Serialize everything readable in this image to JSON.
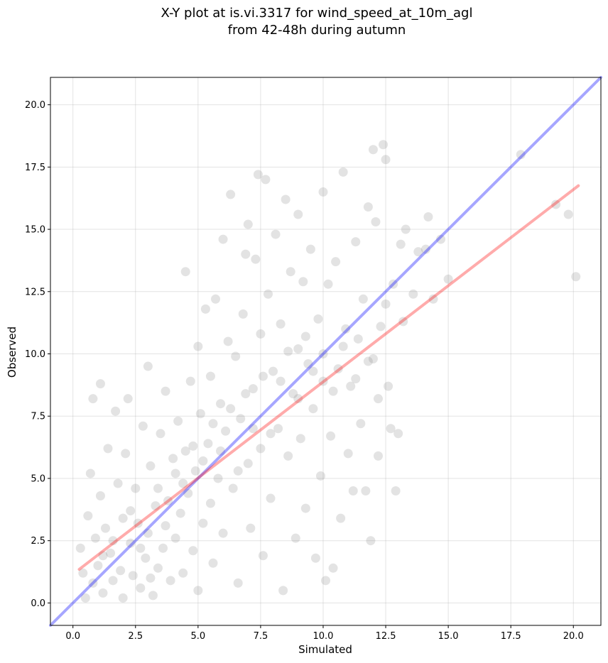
{
  "chart_data": {
    "type": "scatter",
    "title_line1": "X-Y plot at is.vi.3317 for wind_speed_at_10m_agl",
    "title_line2": "from 42-48h during autumn",
    "xlabel": "Simulated",
    "ylabel": "Observed",
    "xlim": [
      -0.9,
      21.1
    ],
    "ylim": [
      -0.9,
      21.1
    ],
    "xticks": [
      0.0,
      2.5,
      5.0,
      7.5,
      10.0,
      12.5,
      15.0,
      17.5,
      20.0
    ],
    "yticks": [
      0.0,
      2.5,
      5.0,
      7.5,
      10.0,
      12.5,
      15.0,
      17.5,
      20.0
    ],
    "xtick_labels": [
      "0.0",
      "2.5",
      "5.0",
      "7.5",
      "10.0",
      "12.5",
      "15.0",
      "17.5",
      "20.0"
    ],
    "ytick_labels": [
      "0.0",
      "2.5",
      "5.0",
      "7.5",
      "10.0",
      "12.5",
      "15.0",
      "17.5",
      "20.0"
    ],
    "grid": true,
    "point_color": "#808080",
    "points": [
      [
        0.3,
        2.2
      ],
      [
        0.4,
        1.2
      ],
      [
        0.5,
        0.2
      ],
      [
        0.6,
        3.5
      ],
      [
        0.7,
        5.2
      ],
      [
        0.8,
        0.8
      ],
      [
        0.8,
        8.2
      ],
      [
        0.9,
        2.6
      ],
      [
        1.0,
        1.5
      ],
      [
        1.1,
        4.3
      ],
      [
        1.1,
        8.8
      ],
      [
        1.2,
        0.4
      ],
      [
        1.3,
        3.0
      ],
      [
        1.4,
        6.2
      ],
      [
        1.5,
        2.0
      ],
      [
        1.6,
        0.9
      ],
      [
        1.7,
        7.7
      ],
      [
        1.8,
        4.8
      ],
      [
        1.9,
        1.3
      ],
      [
        2.0,
        3.4
      ],
      [
        2.0,
        0.2
      ],
      [
        2.1,
        6.0
      ],
      [
        2.2,
        8.2
      ],
      [
        2.3,
        2.4
      ],
      [
        2.4,
        1.1
      ],
      [
        2.5,
        4.6
      ],
      [
        2.6,
        3.2
      ],
      [
        2.7,
        0.6
      ],
      [
        2.8,
        7.1
      ],
      [
        2.9,
        1.8
      ],
      [
        3.0,
        9.5
      ],
      [
        3.0,
        2.8
      ],
      [
        3.1,
        5.5
      ],
      [
        3.2,
        0.3
      ],
      [
        3.3,
        3.9
      ],
      [
        3.4,
        1.4
      ],
      [
        3.5,
        6.8
      ],
      [
        3.6,
        2.2
      ],
      [
        3.7,
        8.5
      ],
      [
        3.8,
        4.1
      ],
      [
        3.9,
        0.9
      ],
      [
        4.0,
        5.8
      ],
      [
        4.1,
        2.6
      ],
      [
        4.2,
        7.3
      ],
      [
        4.3,
        3.6
      ],
      [
        4.4,
        1.2
      ],
      [
        4.5,
        13.3
      ],
      [
        4.5,
        6.1
      ],
      [
        4.6,
        4.4
      ],
      [
        4.7,
        8.9
      ],
      [
        4.8,
        2.1
      ],
      [
        4.9,
        5.3
      ],
      [
        5.0,
        10.3
      ],
      [
        5.0,
        0.5
      ],
      [
        5.1,
        7.6
      ],
      [
        5.2,
        3.2
      ],
      [
        5.3,
        11.8
      ],
      [
        5.4,
        6.4
      ],
      [
        5.5,
        4.0
      ],
      [
        5.5,
        9.1
      ],
      [
        5.6,
        1.6
      ],
      [
        5.7,
        12.2
      ],
      [
        5.8,
        5.0
      ],
      [
        5.9,
        8.0
      ],
      [
        6.0,
        14.6
      ],
      [
        6.0,
        2.8
      ],
      [
        6.1,
        6.9
      ],
      [
        6.2,
        10.5
      ],
      [
        6.3,
        16.4
      ],
      [
        6.4,
        4.6
      ],
      [
        6.5,
        9.9
      ],
      [
        6.6,
        0.8
      ],
      [
        6.7,
        7.4
      ],
      [
        6.8,
        11.6
      ],
      [
        6.9,
        14.0
      ],
      [
        7.0,
        5.6
      ],
      [
        7.0,
        15.2
      ],
      [
        7.1,
        3.0
      ],
      [
        7.2,
        8.6
      ],
      [
        7.3,
        13.8
      ],
      [
        7.4,
        17.2
      ],
      [
        7.5,
        6.2
      ],
      [
        7.5,
        10.8
      ],
      [
        7.6,
        1.9
      ],
      [
        7.7,
        17.0
      ],
      [
        7.8,
        12.4
      ],
      [
        7.9,
        4.2
      ],
      [
        8.0,
        9.3
      ],
      [
        8.1,
        14.8
      ],
      [
        8.2,
        7.0
      ],
      [
        8.3,
        11.2
      ],
      [
        8.4,
        0.5
      ],
      [
        8.5,
        16.2
      ],
      [
        8.6,
        5.9
      ],
      [
        8.7,
        13.3
      ],
      [
        8.8,
        8.4
      ],
      [
        8.9,
        2.6
      ],
      [
        9.0,
        15.6
      ],
      [
        9.0,
        10.2
      ],
      [
        9.1,
        6.6
      ],
      [
        9.2,
        12.9
      ],
      [
        9.3,
        3.8
      ],
      [
        9.4,
        9.6
      ],
      [
        9.5,
        14.2
      ],
      [
        9.6,
        7.8
      ],
      [
        9.7,
        1.8
      ],
      [
        9.8,
        11.4
      ],
      [
        9.9,
        5.1
      ],
      [
        10.0,
        16.5
      ],
      [
        10.0,
        8.9
      ],
      [
        10.1,
        0.9
      ],
      [
        10.2,
        12.8
      ],
      [
        10.3,
        6.7
      ],
      [
        10.4,
        1.4
      ],
      [
        10.5,
        13.7
      ],
      [
        10.6,
        9.4
      ],
      [
        10.7,
        3.4
      ],
      [
        10.8,
        17.3
      ],
      [
        10.9,
        11.0
      ],
      [
        11.0,
        6.0
      ],
      [
        11.1,
        8.7
      ],
      [
        11.2,
        4.5
      ],
      [
        11.3,
        14.5
      ],
      [
        11.4,
        10.6
      ],
      [
        11.5,
        7.2
      ],
      [
        11.6,
        12.2
      ],
      [
        11.7,
        4.5
      ],
      [
        11.8,
        15.9
      ],
      [
        11.9,
        2.5
      ],
      [
        12.0,
        18.2
      ],
      [
        12.0,
        9.8
      ],
      [
        12.1,
        15.3
      ],
      [
        12.2,
        5.9
      ],
      [
        12.3,
        11.1
      ],
      [
        12.4,
        18.4
      ],
      [
        12.5,
        17.8
      ],
      [
        12.5,
        12.0
      ],
      [
        12.6,
        8.7
      ],
      [
        12.7,
        7.0
      ],
      [
        12.8,
        12.8
      ],
      [
        12.9,
        4.5
      ],
      [
        13.0,
        6.8
      ],
      [
        13.1,
        14.4
      ],
      [
        13.2,
        11.3
      ],
      [
        13.3,
        15.0
      ],
      [
        13.6,
        12.4
      ],
      [
        13.8,
        14.1
      ],
      [
        14.1,
        14.2
      ],
      [
        14.2,
        15.5
      ],
      [
        14.4,
        12.2
      ],
      [
        14.7,
        14.6
      ],
      [
        15.0,
        13.0
      ],
      [
        17.9,
        18.0
      ],
      [
        19.3,
        16.0
      ],
      [
        19.8,
        15.6
      ],
      [
        20.1,
        13.1
      ],
      [
        1.2,
        1.9
      ],
      [
        1.6,
        2.5
      ],
      [
        2.3,
        3.7
      ],
      [
        2.7,
        2.2
      ],
      [
        3.1,
        1.0
      ],
      [
        3.4,
        4.6
      ],
      [
        3.7,
        3.1
      ],
      [
        4.1,
        5.2
      ],
      [
        4.4,
        4.8
      ],
      [
        4.8,
        6.3
      ],
      [
        5.2,
        5.7
      ],
      [
        5.6,
        7.2
      ],
      [
        5.9,
        6.1
      ],
      [
        6.3,
        7.8
      ],
      [
        6.6,
        5.3
      ],
      [
        6.9,
        8.4
      ],
      [
        7.2,
        7.0
      ],
      [
        7.6,
        9.1
      ],
      [
        7.9,
        6.8
      ],
      [
        8.3,
        8.9
      ],
      [
        8.6,
        10.1
      ],
      [
        9.0,
        8.2
      ],
      [
        9.3,
        10.7
      ],
      [
        9.6,
        9.3
      ],
      [
        10.0,
        10.0
      ],
      [
        10.4,
        8.5
      ],
      [
        10.8,
        10.3
      ],
      [
        11.3,
        9.0
      ],
      [
        11.8,
        9.7
      ],
      [
        12.2,
        8.2
      ]
    ],
    "series": [
      {
        "name": "",
        "kind": "identity",
        "color": "#0000ff",
        "opacity": 0.35,
        "x": [
          -0.9,
          21.1
        ],
        "y": [
          -0.9,
          21.1
        ]
      },
      {
        "name": "",
        "kind": "fit",
        "color": "#ff0000",
        "opacity": 0.33,
        "x": [
          0.25,
          20.2
        ],
        "y": [
          1.35,
          16.75
        ]
      }
    ]
  }
}
